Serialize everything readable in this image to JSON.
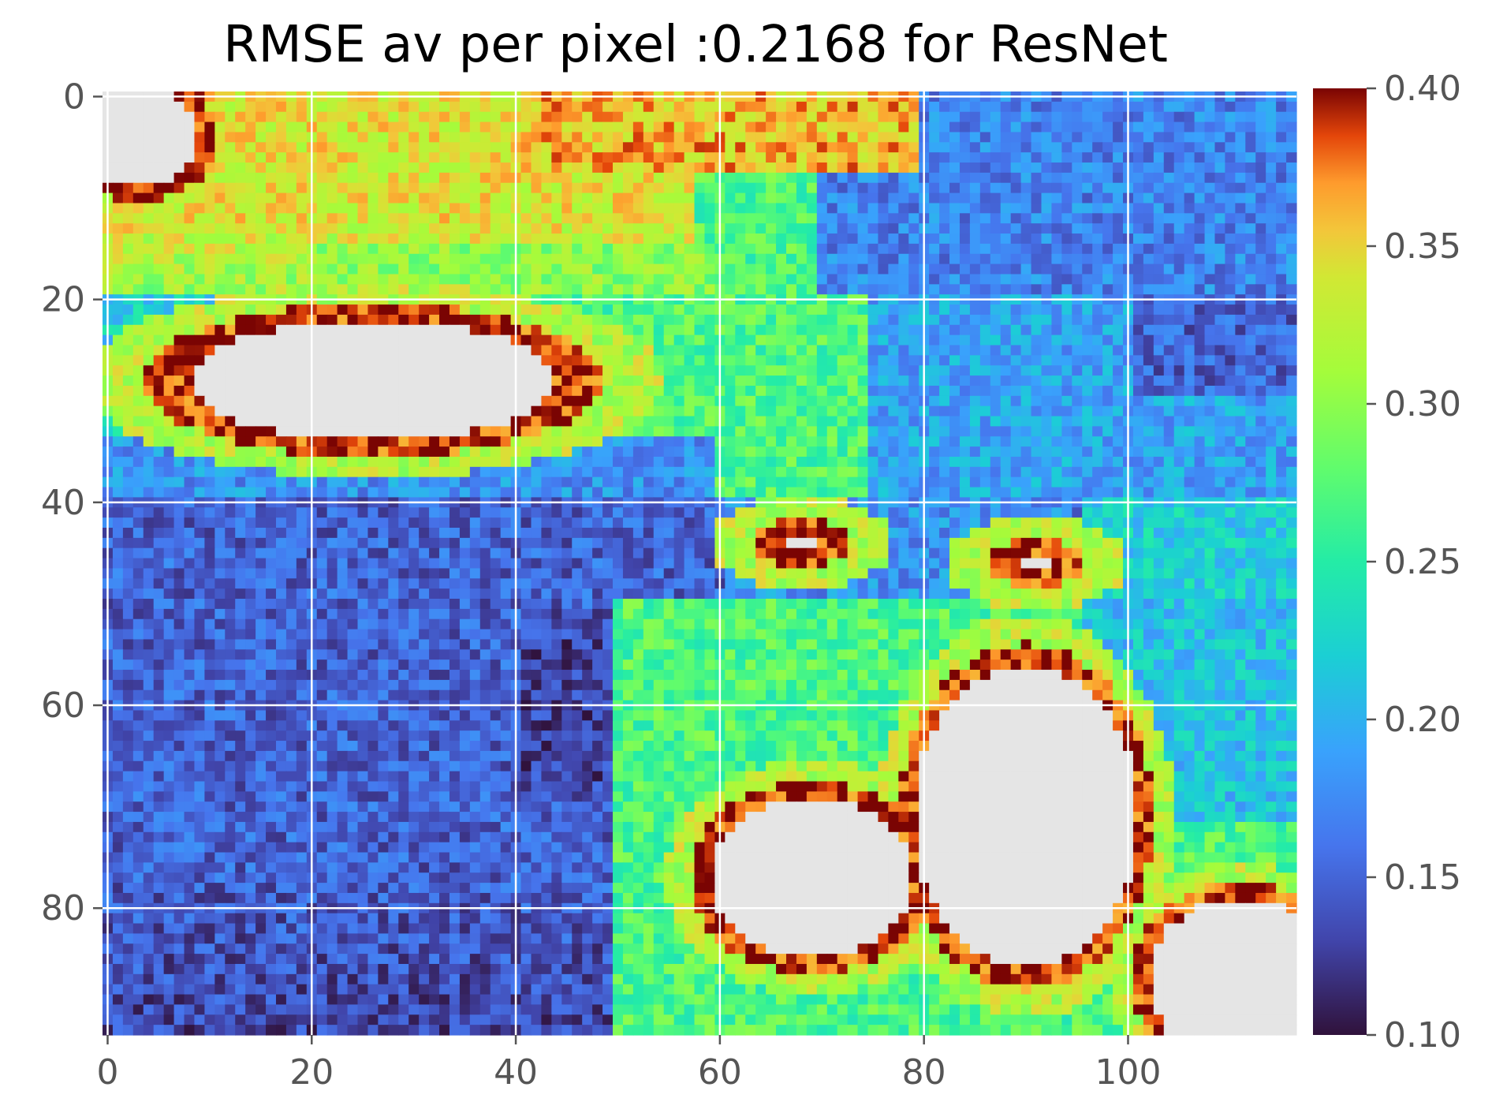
{
  "chart_data": {
    "type": "heatmap",
    "title": "RMSE av per pixel :0.2168 for ResNet",
    "xlabel": "",
    "ylabel": "",
    "grid_size": {
      "cols": 117,
      "rows": 93
    },
    "xlim": [
      -0.5,
      116.5
    ],
    "ylim": [
      92.5,
      -0.5
    ],
    "x_ticks": [
      0,
      20,
      40,
      60,
      80,
      100
    ],
    "y_ticks": [
      0,
      20,
      40,
      60,
      80
    ],
    "x_tick_labels": [
      "0",
      "20",
      "40",
      "60",
      "80",
      "100"
    ],
    "y_tick_labels": [
      "0",
      "20",
      "40",
      "60",
      "80"
    ],
    "grid": true,
    "colormap": "turbo",
    "color_range": [
      0.1,
      0.4
    ],
    "colorbar_ticks": [
      0.1,
      0.15,
      0.2,
      0.25,
      0.3,
      0.35,
      0.4
    ],
    "colorbar_tick_labels": [
      "0.10",
      "0.15",
      "0.20",
      "0.25",
      "0.30",
      "0.35",
      "0.40"
    ],
    "masked_color": "#e5e5e5",
    "regional_values": {
      "rows_0_20_cols_0_60": 0.34,
      "rows_0_20_cols_60_117": 0.17,
      "rows_20_40_cols_0_60": 0.25,
      "rows_20_40_cols_60_117": 0.19,
      "rows_40_93_cols_0_55": 0.15,
      "rows_50_93_cols_55_117": 0.27
    },
    "masked_regions": [
      {
        "shape": "ellipse",
        "row_center": 28,
        "col_center": 26,
        "row_radius": 6,
        "col_radius": 18
      },
      {
        "shape": "ellipse",
        "row_center": 4,
        "col_center": 3,
        "row_radius": 5,
        "col_radius": 6
      },
      {
        "shape": "ellipse",
        "row_center": 77,
        "col_center": 69,
        "row_radius": 8,
        "col_radius": 10
      },
      {
        "shape": "ellipse",
        "row_center": 71,
        "col_center": 90,
        "row_radius": 15,
        "col_radius": 11
      },
      {
        "shape": "ellipse",
        "row_center": 87,
        "col_center": 111,
        "row_radius": 8,
        "col_radius": 9
      },
      {
        "shape": "ellipse",
        "row_center": 44,
        "col_center": 68,
        "row_radius": 1,
        "col_radius": 2
      },
      {
        "shape": "ellipse",
        "row_center": 46,
        "col_center": 91,
        "row_radius": 1,
        "col_radius": 2
      }
    ]
  }
}
